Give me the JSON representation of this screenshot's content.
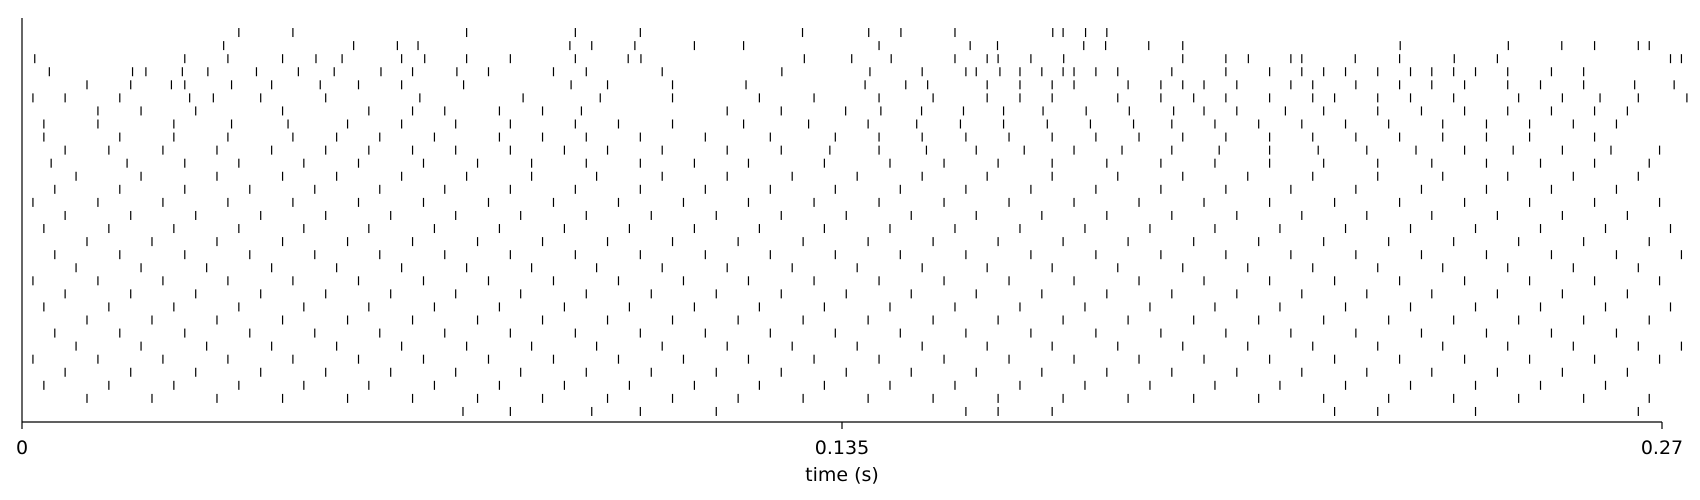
{
  "chart_data": {
    "type": "raster",
    "title": "",
    "xlabel": "time (s)",
    "ylabel": "",
    "xlim": [
      0,
      0.27
    ],
    "xticks": [
      {
        "value": 0,
        "label": "0"
      },
      {
        "value": 0.135,
        "label": "0.135"
      },
      {
        "value": 0.27,
        "label": "0.27"
      }
    ],
    "grid": false,
    "axes": {
      "left_spine": true,
      "bottom_spine": true,
      "top_spine": false,
      "right_spine": false,
      "yticks": false
    },
    "mark_color": "#000000",
    "trials": [
      [
        0.0357,
        0.0446,
        0.0732,
        0.0911,
        0.1018,
        0.1285,
        0.1394,
        0.1447,
        0.1536,
        0.1697,
        0.1714,
        0.1751,
        0.1786
      ],
      [
        0.0332,
        0.0546,
        0.0618,
        0.0652,
        0.0902,
        0.0938,
        0.1009,
        0.1107,
        0.1188,
        0.1411,
        0.1561,
        0.1606,
        0.1748,
        0.1784,
        0.1855,
        0.1911,
        0.2269,
        0.2447,
        0.2535,
        0.2589,
        0.2661,
        0.2679
      ],
      [
        0.0021,
        0.0268,
        0.0339,
        0.0429,
        0.0484,
        0.0527,
        0.0625,
        0.0663,
        0.0732,
        0.0804,
        0.0911,
        0.0998,
        0.1019,
        0.1288,
        0.1366,
        0.1431,
        0.1536,
        0.1589,
        0.1607,
        0.1661,
        0.1715,
        0.1911,
        0.1982,
        0.2019,
        0.2089,
        0.2107,
        0.2195,
        0.2268,
        0.2358,
        0.2429,
        0.2714,
        0.2732
      ],
      [
        0.0045,
        0.0182,
        0.0204,
        0.0264,
        0.0306,
        0.0386,
        0.0455,
        0.0514,
        0.0591,
        0.0643,
        0.0716,
        0.0768,
        0.0875,
        0.0929,
        0.1054,
        0.1251,
        0.1396,
        0.1482,
        0.1554,
        0.1571,
        0.161,
        0.1643,
        0.1679,
        0.1714,
        0.1732,
        0.1768,
        0.1804,
        0.1893,
        0.1982,
        0.2054,
        0.2107,
        0.2143,
        0.2179,
        0.2232,
        0.2286,
        0.2321,
        0.2357,
        0.2393,
        0.2446,
        0.2518,
        0.2571
      ],
      [
        0.0107,
        0.0179,
        0.0246,
        0.0268,
        0.0345,
        0.0411,
        0.0491,
        0.0554,
        0.0625,
        0.0727,
        0.0904,
        0.0964,
        0.1071,
        0.1192,
        0.1388,
        0.1455,
        0.1491,
        0.1589,
        0.1643,
        0.1696,
        0.1732,
        0.1821,
        0.1875,
        0.1911,
        0.1946,
        0.2,
        0.2089,
        0.2125,
        0.2196,
        0.2268,
        0.2321,
        0.2375,
        0.2446,
        0.25,
        0.2571,
        0.2655,
        0.272
      ],
      [
        0.0018,
        0.0071,
        0.0161,
        0.0276,
        0.0315,
        0.0393,
        0.05,
        0.0655,
        0.0825,
        0.0952,
        0.1071,
        0.1214,
        0.1304,
        0.1411,
        0.15,
        0.1589,
        0.1643,
        0.1696,
        0.1804,
        0.1875,
        0.1929,
        0.1982,
        0.2054,
        0.2125,
        0.2161,
        0.2232,
        0.2286,
        0.2357,
        0.2464,
        0.2536,
        0.2598,
        0.2661,
        0.2741
      ],
      [
        0.0125,
        0.0196,
        0.0286,
        0.0429,
        0.0571,
        0.0643,
        0.0696,
        0.0786,
        0.0857,
        0.0921,
        0.1161,
        0.125,
        0.1356,
        0.1414,
        0.1481,
        0.155,
        0.1616,
        0.1681,
        0.1752,
        0.1823,
        0.1896,
        0.1946,
        0.2,
        0.208,
        0.2143,
        0.2232,
        0.2304,
        0.2375,
        0.2446,
        0.2518,
        0.2589,
        0.2643
      ],
      [
        0.0036,
        0.0125,
        0.025,
        0.0345,
        0.0438,
        0.0536,
        0.0625,
        0.0714,
        0.0804,
        0.0911,
        0.0982,
        0.1071,
        0.1188,
        0.1295,
        0.1393,
        0.1473,
        0.1545,
        0.1616,
        0.1688,
        0.1759,
        0.183,
        0.1893,
        0.1964,
        0.2036,
        0.2107,
        0.2179,
        0.225,
        0.2339,
        0.2411,
        0.2482,
        0.2554,
        0.2625
      ],
      [
        0.0036,
        0.0161,
        0.025,
        0.0339,
        0.0446,
        0.0518,
        0.0589,
        0.0679,
        0.0786,
        0.0857,
        0.0929,
        0.1018,
        0.1125,
        0.1232,
        0.1339,
        0.1411,
        0.1482,
        0.1554,
        0.1625,
        0.1696,
        0.1768,
        0.1839,
        0.1911,
        0.1982,
        0.2054,
        0.2125,
        0.2196,
        0.2268,
        0.2339,
        0.2411,
        0.2482,
        0.2589
      ],
      [
        0.0071,
        0.0143,
        0.0232,
        0.0321,
        0.0411,
        0.05,
        0.0571,
        0.0643,
        0.0714,
        0.0804,
        0.0893,
        0.0964,
        0.1054,
        0.1161,
        0.125,
        0.133,
        0.1411,
        0.1489,
        0.1571,
        0.165,
        0.1732,
        0.1811,
        0.1893,
        0.1971,
        0.2054,
        0.2134,
        0.2214,
        0.2295,
        0.2375,
        0.2455,
        0.2536,
        0.2616,
        0.2696
      ],
      [
        0.0048,
        0.0173,
        0.0268,
        0.0357,
        0.0464,
        0.0554,
        0.0661,
        0.075,
        0.0839,
        0.0929,
        0.1018,
        0.1107,
        0.1196,
        0.1321,
        0.1429,
        0.1518,
        0.1607,
        0.1696,
        0.1786,
        0.1875,
        0.1964,
        0.2054,
        0.2143,
        0.2232,
        0.2321,
        0.2411,
        0.25,
        0.2589,
        0.2679
      ],
      [
        0.0089,
        0.0196,
        0.0321,
        0.0429,
        0.0518,
        0.0625,
        0.0732,
        0.0839,
        0.0946,
        0.1054,
        0.1161,
        0.1268,
        0.1375,
        0.1482,
        0.1589,
        0.1696,
        0.1804,
        0.1911,
        0.2018,
        0.2125,
        0.2232,
        0.2339,
        0.2446,
        0.2554,
        0.2661
      ],
      [
        0.0054,
        0.0161,
        0.0268,
        0.0375,
        0.0482,
        0.0589,
        0.0696,
        0.0804,
        0.0911,
        0.1018,
        0.1125,
        0.1232,
        0.1339,
        0.1446,
        0.1554,
        0.1661,
        0.1768,
        0.1875,
        0.1982,
        0.2089,
        0.2196,
        0.2304,
        0.2411,
        0.2518,
        0.2625
      ],
      [
        0.0018,
        0.0125,
        0.0232,
        0.0339,
        0.0446,
        0.0554,
        0.0661,
        0.0768,
        0.0875,
        0.0982,
        0.1089,
        0.1196,
        0.1304,
        0.1411,
        0.1518,
        0.1625,
        0.1732,
        0.1839,
        0.1946,
        0.2054,
        0.2161,
        0.2268,
        0.2375,
        0.2482,
        0.2589,
        0.2696
      ],
      [
        0.0071,
        0.0179,
        0.0286,
        0.0393,
        0.05,
        0.0607,
        0.0714,
        0.0821,
        0.0929,
        0.1036,
        0.1143,
        0.125,
        0.1357,
        0.1464,
        0.1571,
        0.1679,
        0.1786,
        0.1893,
        0.2,
        0.2107,
        0.2214,
        0.2321,
        0.2429,
        0.2536,
        0.2643
      ],
      [
        0.0036,
        0.0143,
        0.025,
        0.0357,
        0.0464,
        0.0571,
        0.0679,
        0.0786,
        0.0893,
        0.1,
        0.1107,
        0.1214,
        0.1321,
        0.1429,
        0.1536,
        0.1643,
        0.175,
        0.1857,
        0.1964,
        0.2071,
        0.2179,
        0.2286,
        0.2393,
        0.25,
        0.2607,
        0.2714
      ],
      [
        0.0107,
        0.0214,
        0.0321,
        0.0429,
        0.0536,
        0.0643,
        0.075,
        0.0857,
        0.0964,
        0.1071,
        0.1179,
        0.1286,
        0.1393,
        0.15,
        0.1607,
        0.1714,
        0.1821,
        0.1929,
        0.2036,
        0.2143,
        0.225,
        0.2357,
        0.2464,
        0.2571,
        0.2679
      ],
      [
        0.0054,
        0.0161,
        0.0268,
        0.0375,
        0.0482,
        0.0589,
        0.0696,
        0.0804,
        0.0911,
        0.1018,
        0.1125,
        0.1232,
        0.1339,
        0.1446,
        0.1554,
        0.1661,
        0.1768,
        0.1875,
        0.1982,
        0.2089,
        0.2196,
        0.2304,
        0.2411,
        0.2518,
        0.2625,
        0.2732
      ],
      [
        0.0089,
        0.0196,
        0.0304,
        0.0411,
        0.0518,
        0.0625,
        0.0732,
        0.0839,
        0.0946,
        0.1054,
        0.1161,
        0.1268,
        0.1375,
        0.1482,
        0.1589,
        0.1696,
        0.1804,
        0.1911,
        0.2018,
        0.2125,
        0.2232,
        0.2339,
        0.2446,
        0.2554,
        0.2661
      ],
      [
        0.0018,
        0.0125,
        0.0232,
        0.0339,
        0.0446,
        0.0554,
        0.0661,
        0.0768,
        0.0875,
        0.0982,
        0.1089,
        0.1196,
        0.1304,
        0.1411,
        0.1518,
        0.1625,
        0.1732,
        0.1839,
        0.1946,
        0.2054,
        0.2161,
        0.2268,
        0.2375,
        0.2482,
        0.2589,
        0.2696
      ],
      [
        0.0071,
        0.0179,
        0.0286,
        0.0393,
        0.05,
        0.0607,
        0.0714,
        0.0821,
        0.0929,
        0.1036,
        0.1143,
        0.125,
        0.1357,
        0.1464,
        0.1571,
        0.1679,
        0.1786,
        0.1893,
        0.2,
        0.2107,
        0.2214,
        0.2321,
        0.2429,
        0.2536,
        0.2643
      ],
      [
        0.0036,
        0.0143,
        0.025,
        0.0357,
        0.0464,
        0.0571,
        0.0679,
        0.0786,
        0.0893,
        0.1,
        0.1107,
        0.1214,
        0.1321,
        0.1429,
        0.1536,
        0.1643,
        0.175,
        0.1857,
        0.1964,
        0.2071,
        0.2179,
        0.2286,
        0.2393,
        0.25,
        0.2607,
        0.2714
      ],
      [
        0.0107,
        0.0214,
        0.0321,
        0.0429,
        0.0536,
        0.0643,
        0.075,
        0.0857,
        0.0964,
        0.1071,
        0.1179,
        0.1286,
        0.1393,
        0.15,
        0.1607,
        0.1714,
        0.1821,
        0.1929,
        0.2036,
        0.2143,
        0.225,
        0.2357,
        0.2464,
        0.2571,
        0.2679
      ],
      [
        0.0054,
        0.0161,
        0.0268,
        0.0375,
        0.0482,
        0.0589,
        0.0696,
        0.0804,
        0.0911,
        0.1018,
        0.1125,
        0.1232,
        0.1339,
        0.1446,
        0.1554,
        0.1661,
        0.1768,
        0.1875,
        0.1982,
        0.2089,
        0.2196,
        0.2304,
        0.2411,
        0.2518,
        0.2625
      ],
      [
        0.0089,
        0.0196,
        0.0304,
        0.0411,
        0.0518,
        0.0625,
        0.0732,
        0.0839,
        0.0946,
        0.1054,
        0.1161,
        0.1268,
        0.1375,
        0.1482,
        0.1589,
        0.1696,
        0.1804,
        0.1911,
        0.2018,
        0.2125,
        0.2232,
        0.2339,
        0.2446,
        0.2554,
        0.2661,
        0.2732
      ],
      [
        0.0018,
        0.0125,
        0.0232,
        0.0339,
        0.0446,
        0.0554,
        0.0661,
        0.0768,
        0.0875,
        0.0982,
        0.1089,
        0.1196,
        0.1304,
        0.1411,
        0.1518,
        0.1625,
        0.1732,
        0.1839,
        0.1946,
        0.2054,
        0.2161,
        0.2268,
        0.2375,
        0.2482,
        0.2589,
        0.2696
      ],
      [
        0.0071,
        0.0179,
        0.0286,
        0.0393,
        0.05,
        0.0607,
        0.0714,
        0.0821,
        0.0929,
        0.1036,
        0.1143,
        0.125,
        0.1357,
        0.1464,
        0.1571,
        0.1679,
        0.1786,
        0.1893,
        0.2,
        0.2107,
        0.2214,
        0.2321,
        0.2429,
        0.2536,
        0.2643
      ],
      [
        0.0036,
        0.0143,
        0.025,
        0.0357,
        0.0464,
        0.0571,
        0.0679,
        0.0786,
        0.0893,
        0.1,
        0.1107,
        0.1214,
        0.1321,
        0.1429,
        0.1536,
        0.1643,
        0.175,
        0.1857,
        0.1964,
        0.2071,
        0.2179,
        0.2286,
        0.2393,
        0.25,
        0.2607
      ],
      [
        0.0107,
        0.0214,
        0.0321,
        0.0429,
        0.0536,
        0.0643,
        0.075,
        0.0857,
        0.0964,
        0.1071,
        0.1179,
        0.1286,
        0.1393,
        0.15,
        0.1607,
        0.1714,
        0.1821,
        0.1929,
        0.2036,
        0.2143,
        0.225,
        0.2357,
        0.2464,
        0.2571,
        0.2679
      ],
      [
        0.0726,
        0.0804,
        0.0938,
        0.1018,
        0.1143,
        0.1554,
        0.1607,
        0.1696,
        0.2161,
        0.2232,
        0.2393,
        0.2661
      ]
    ]
  }
}
